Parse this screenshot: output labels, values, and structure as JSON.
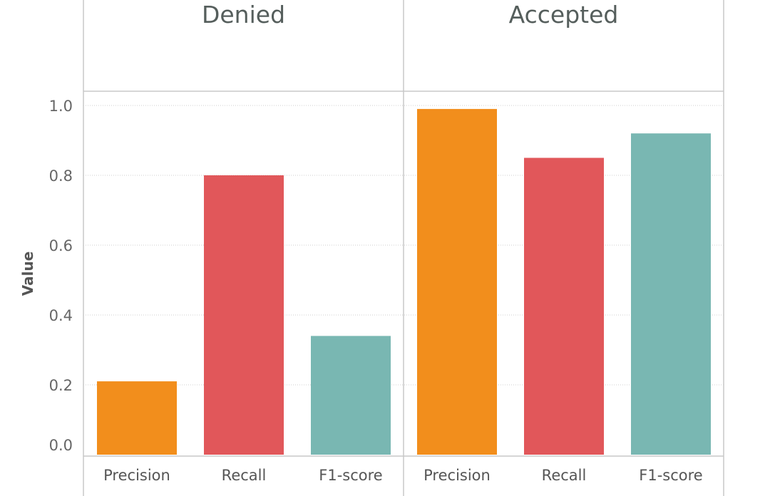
{
  "chart_data": {
    "type": "bar",
    "panels": [
      "Denied",
      "Accepted"
    ],
    "categories": [
      "Precision",
      "Recall",
      "F1-score"
    ],
    "series": [
      {
        "panel": "Denied",
        "values": [
          0.21,
          0.8,
          0.34
        ]
      },
      {
        "panel": "Accepted",
        "values": [
          0.99,
          0.85,
          0.92
        ]
      }
    ],
    "ylabel": "Value",
    "ylim": [
      0,
      1.0
    ],
    "yticks": [
      "0.0",
      "0.2",
      "0.4",
      "0.6",
      "0.8",
      "1.0"
    ],
    "grid": true,
    "colors": {
      "Precision": "#f28e1c",
      "Recall": "#e1575a",
      "F1-score": "#79b7b2"
    }
  }
}
